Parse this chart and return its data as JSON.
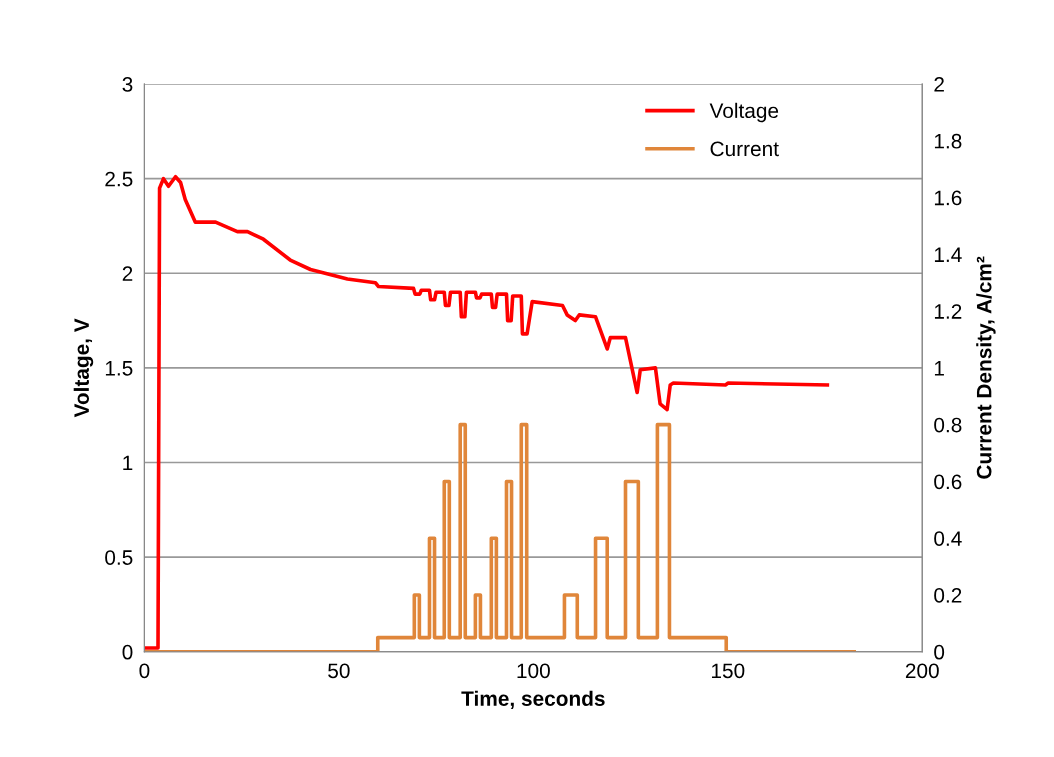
{
  "chart_data": {
    "type": "line",
    "xlabel": "Time, seconds",
    "ylabel": "Voltage, V",
    "y2label": "Current Density, A/cm²",
    "xlim": [
      0,
      200
    ],
    "xticks": [
      0,
      50,
      100,
      150,
      200
    ],
    "ylim": [
      0,
      3
    ],
    "yticks": [
      0,
      0.5,
      1,
      1.5,
      2,
      2.5,
      3
    ],
    "y2lim": [
      0,
      2
    ],
    "y2ticks": [
      0,
      0.2,
      0.4,
      0.6,
      0.8,
      1,
      1.2,
      1.4,
      1.6,
      1.8,
      2
    ],
    "grid": "y",
    "legend": "top right",
    "marker": "none",
    "line_style": "solid",
    "series": [
      {
        "name": "Voltage",
        "color": "#ff0000",
        "x": [
          0,
          3.5,
          3.9,
          4.9,
          6.2,
          8,
          9.3,
          10.5,
          13.1,
          18.3,
          23.9,
          26.5,
          30.6,
          37.5,
          42.7,
          52.2,
          59.4,
          60.2,
          69.2,
          69.6,
          70.8,
          71.2,
          73.3,
          73.6,
          74.6,
          75,
          77.1,
          77.4,
          78.3,
          78.7,
          81.2,
          81.5,
          82.4,
          82.8,
          85.1,
          85.4,
          86.3,
          86.7,
          89.2,
          89.5,
          90.3,
          90.7,
          93.1,
          93.4,
          94.3,
          94.7,
          96.9,
          97.2,
          98.4,
          99.7,
          107.5,
          108.7,
          110.8,
          111.8,
          116,
          119,
          119.8,
          123.7,
          126.7,
          127.5,
          131.4,
          132.6,
          134.4,
          135.2,
          136,
          149.4,
          150.1,
          175.6
        ],
        "values": [
          0.02,
          0.02,
          2.45,
          2.5,
          2.46,
          2.51,
          2.48,
          2.39,
          2.27,
          2.27,
          2.22,
          2.22,
          2.18,
          2.07,
          2.02,
          1.97,
          1.95,
          1.93,
          1.92,
          1.89,
          1.89,
          1.91,
          1.91,
          1.86,
          1.86,
          1.9,
          1.9,
          1.83,
          1.83,
          1.9,
          1.9,
          1.77,
          1.77,
          1.9,
          1.9,
          1.87,
          1.87,
          1.89,
          1.89,
          1.82,
          1.82,
          1.89,
          1.89,
          1.75,
          1.75,
          1.88,
          1.88,
          1.68,
          1.68,
          1.85,
          1.83,
          1.78,
          1.75,
          1.78,
          1.77,
          1.6,
          1.66,
          1.66,
          1.37,
          1.49,
          1.5,
          1.31,
          1.28,
          1.41,
          1.42,
          1.41,
          1.42,
          1.41
        ]
      },
      {
        "name": "Current",
        "color": "#e0863a",
        "type": "step",
        "axis": "y2",
        "x": [
          0,
          60,
          69.4,
          70.7,
          73.3,
          74.6,
          77.1,
          78.4,
          81.2,
          82.5,
          85.1,
          86.4,
          89.2,
          90.5,
          93.1,
          94.4,
          96.9,
          98.3,
          108,
          111.3,
          116,
          119,
          123.7,
          127,
          131.9,
          135,
          149.6,
          182.5
        ],
        "values": [
          0,
          0.05,
          0.2,
          0.05,
          0.4,
          0.05,
          0.6,
          0.05,
          0.8,
          0.05,
          0.2,
          0.05,
          0.4,
          0.05,
          0.6,
          0.05,
          0.8,
          0.05,
          0.2,
          0.05,
          0.4,
          0.05,
          0.6,
          0.05,
          0.8,
          0.05,
          0,
          0
        ]
      }
    ]
  }
}
